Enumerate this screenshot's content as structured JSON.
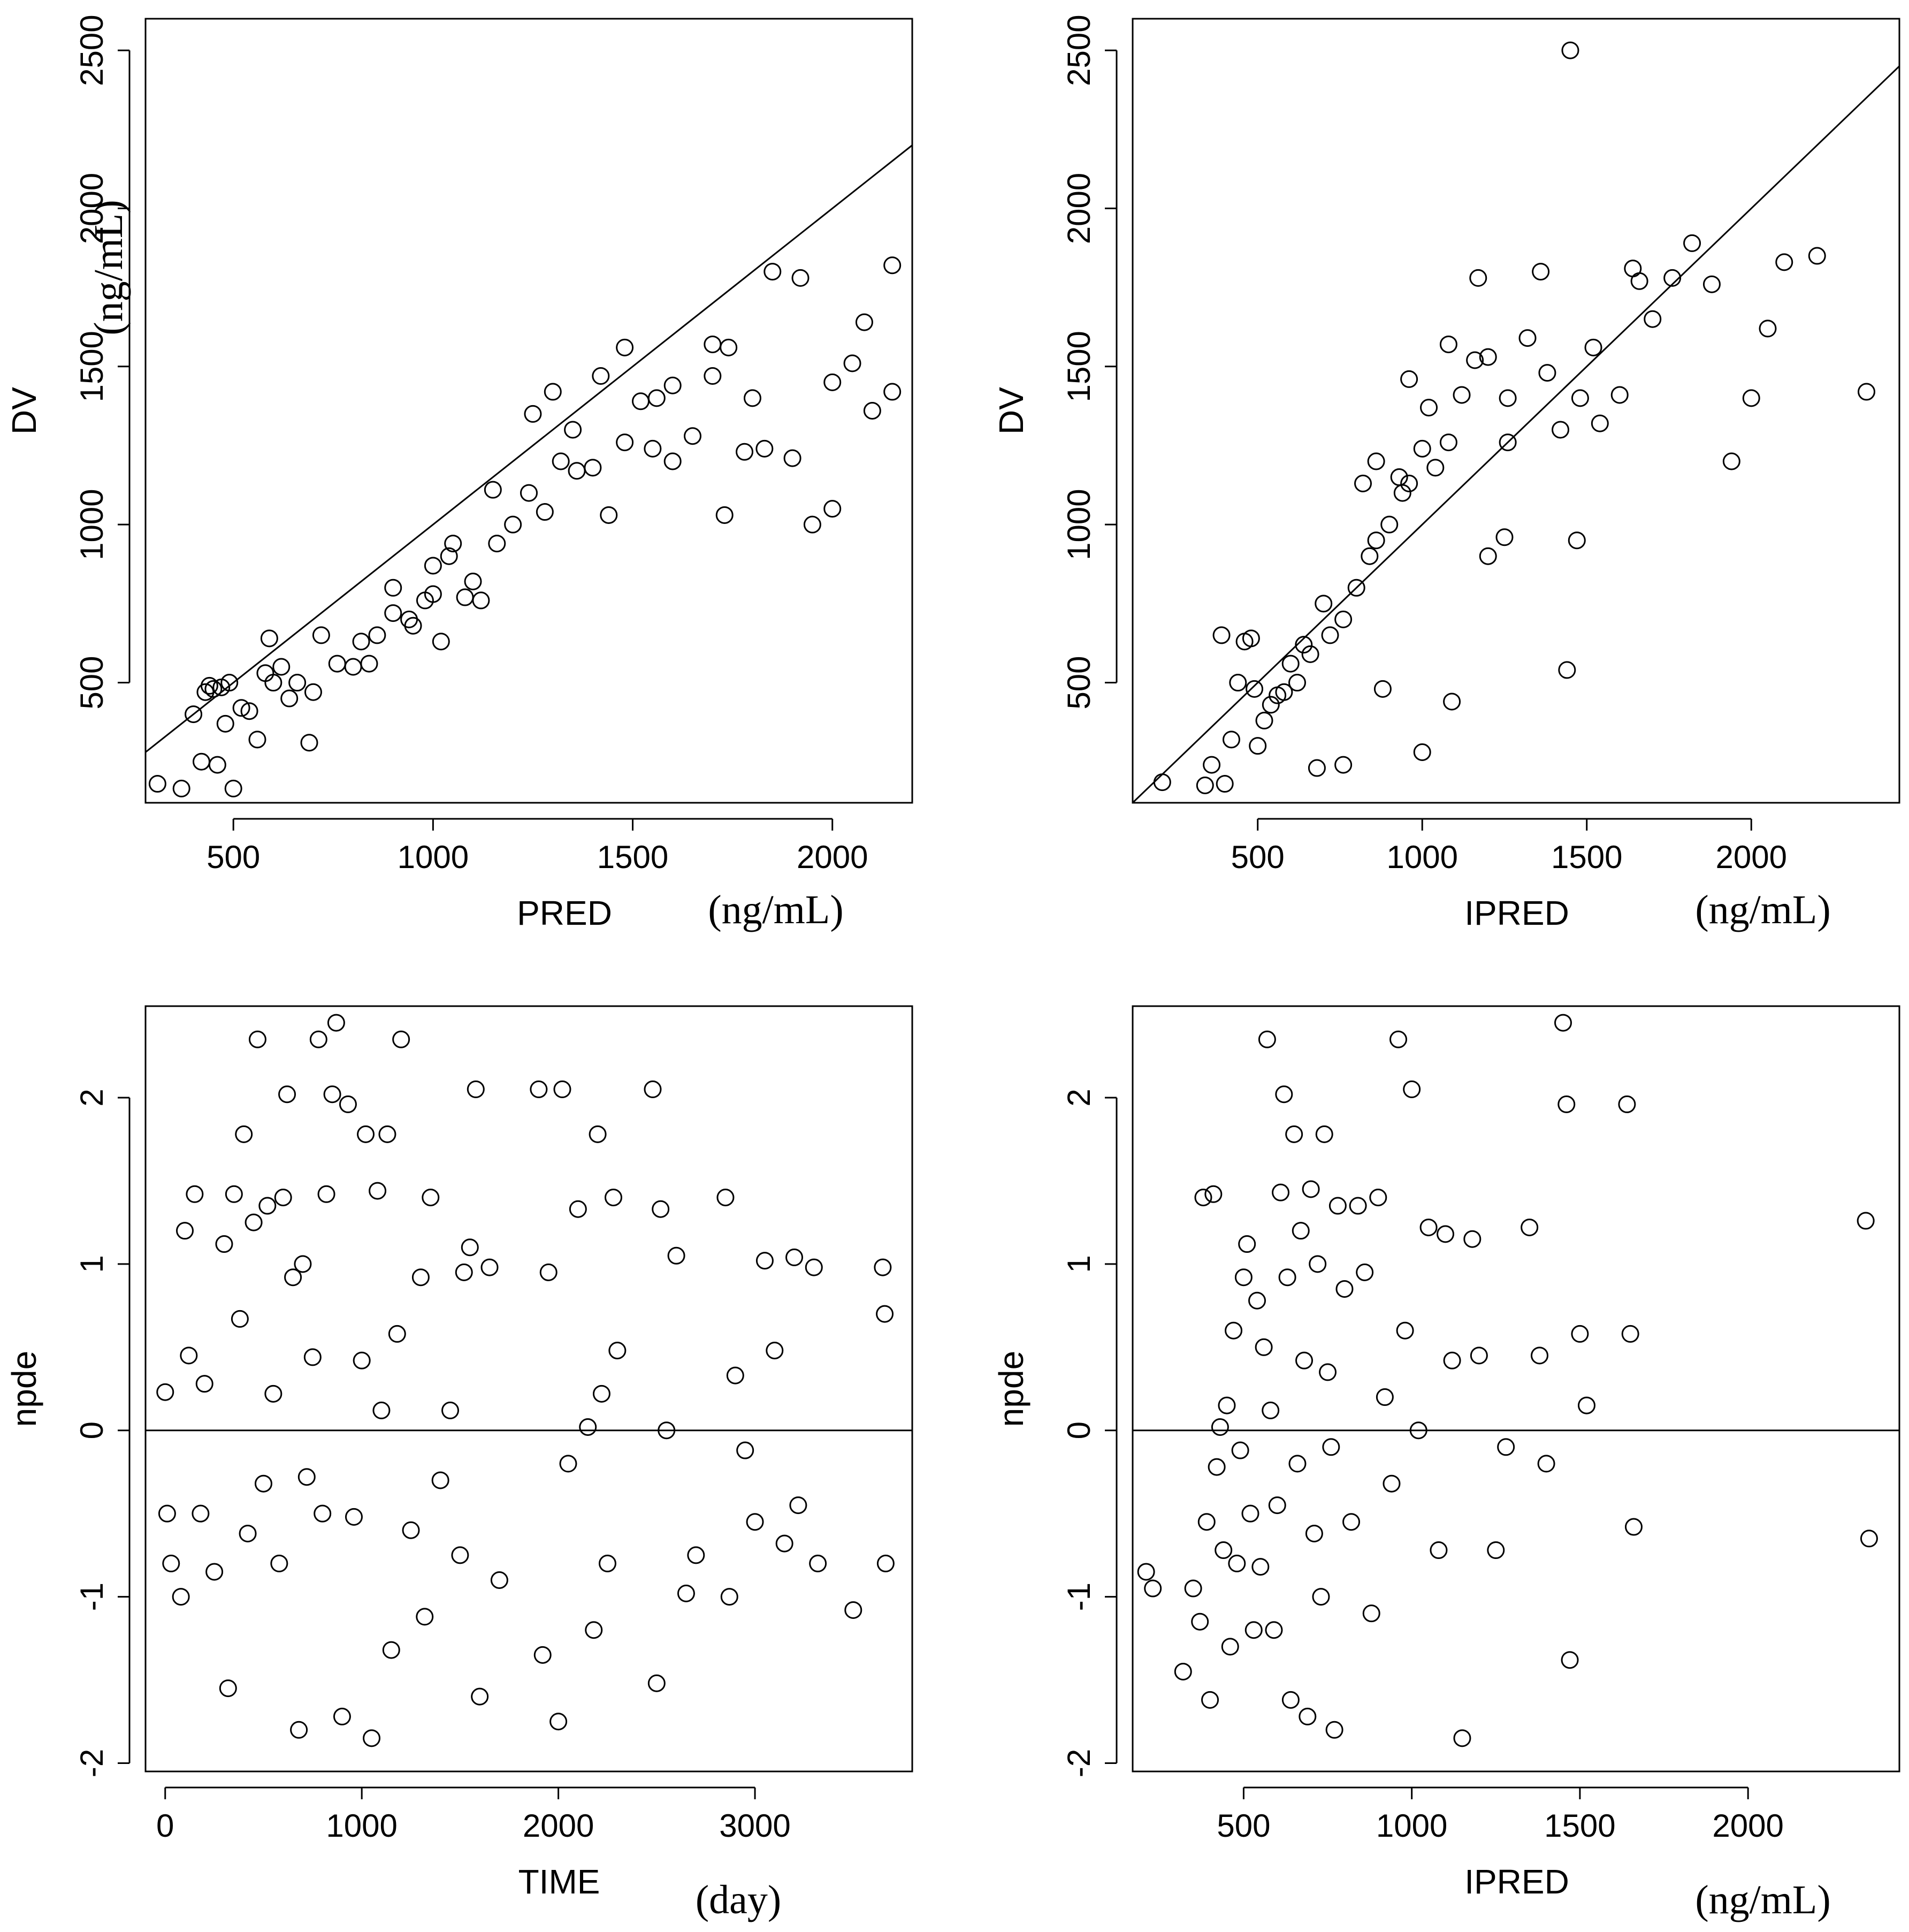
{
  "chart_data": [
    {
      "id": "top-left",
      "type": "scatter",
      "title": "",
      "xlabel": "PRED",
      "ylabel": "DV",
      "x_unit": "(ng/mL)",
      "y_unit": "(ng/mL)",
      "xlim": [
        280,
        2200
      ],
      "ylim": [
        120,
        2600
      ],
      "xticks": [
        500,
        1000,
        1500,
        2000
      ],
      "yticks": [
        500,
        1000,
        1500,
        2000,
        2500
      ],
      "reference_line": {
        "type": "identity",
        "from": [
          280,
          280
        ],
        "to": [
          2200,
          2200
        ]
      },
      "points": [
        [
          310,
          180
        ],
        [
          370,
          165
        ],
        [
          400,
          400
        ],
        [
          420,
          250
        ],
        [
          430,
          470
        ],
        [
          440,
          490
        ],
        [
          450,
          480
        ],
        [
          460,
          240
        ],
        [
          470,
          485
        ],
        [
          480,
          370
        ],
        [
          490,
          500
        ],
        [
          520,
          420
        ],
        [
          500,
          165
        ],
        [
          540,
          410
        ],
        [
          560,
          320
        ],
        [
          580,
          530
        ],
        [
          590,
          640
        ],
        [
          600,
          500
        ],
        [
          620,
          550
        ],
        [
          640,
          450
        ],
        [
          660,
          500
        ],
        [
          690,
          310
        ],
        [
          700,
          470
        ],
        [
          720,
          650
        ],
        [
          760,
          560
        ],
        [
          800,
          550
        ],
        [
          820,
          630
        ],
        [
          840,
          560
        ],
        [
          860,
          650
        ],
        [
          900,
          720
        ],
        [
          940,
          700
        ],
        [
          980,
          760
        ],
        [
          1000,
          780
        ],
        [
          1020,
          630
        ],
        [
          1040,
          900
        ],
        [
          1080,
          770
        ],
        [
          1120,
          760
        ],
        [
          1160,
          940
        ],
        [
          1200,
          1000
        ],
        [
          1240,
          1100
        ],
        [
          1280,
          1040
        ],
        [
          1320,
          1200
        ],
        [
          1360,
          1170
        ],
        [
          1400,
          1180
        ],
        [
          1440,
          1030
        ],
        [
          1480,
          1260
        ],
        [
          1520,
          1390
        ],
        [
          1560,
          1400
        ],
        [
          1600,
          1440
        ],
        [
          1650,
          1280
        ],
        [
          1700,
          1570
        ],
        [
          1740,
          1560
        ],
        [
          1780,
          1230
        ],
        [
          1800,
          1400
        ],
        [
          1850,
          1800
        ],
        [
          1900,
          1210
        ],
        [
          1950,
          1000
        ],
        [
          2000,
          1450
        ],
        [
          2050,
          1510
        ],
        [
          2100,
          1360
        ],
        [
          2150,
          1820
        ],
        [
          900,
          800
        ],
        [
          950,
          680
        ],
        [
          1000,
          870
        ],
        [
          1050,
          940
        ],
        [
          1100,
          820
        ],
        [
          1150,
          1110
        ],
        [
          1250,
          1350
        ],
        [
          1300,
          1420
        ],
        [
          1350,
          1300
        ],
        [
          1420,
          1470
        ],
        [
          1480,
          1560
        ],
        [
          1550,
          1240
        ],
        [
          1600,
          1200
        ],
        [
          1700,
          1470
        ],
        [
          1730,
          1030
        ],
        [
          1830,
          1240
        ],
        [
          1920,
          1780
        ],
        [
          2000,
          1050
        ],
        [
          2080,
          1640
        ],
        [
          2150,
          1420
        ]
      ]
    },
    {
      "id": "top-right",
      "type": "scatter",
      "title": "",
      "xlabel": "IPRED",
      "ylabel": "DV",
      "x_unit": "(ng/mL)",
      "xlim": [
        120,
        2450
      ],
      "ylim": [
        120,
        2600
      ],
      "xticks": [
        500,
        1000,
        1500,
        2000
      ],
      "yticks": [
        500,
        1000,
        1500,
        2000,
        2500
      ],
      "reference_line": {
        "type": "identity",
        "from": [
          120,
          120
        ],
        "to": [
          2450,
          2450
        ]
      },
      "points": [
        [
          210,
          185
        ],
        [
          340,
          175
        ],
        [
          360,
          240
        ],
        [
          390,
          650
        ],
        [
          400,
          180
        ],
        [
          420,
          320
        ],
        [
          440,
          500
        ],
        [
          460,
          630
        ],
        [
          480,
          640
        ],
        [
          490,
          480
        ],
        [
          500,
          300
        ],
        [
          520,
          380
        ],
        [
          540,
          430
        ],
        [
          560,
          460
        ],
        [
          580,
          470
        ],
        [
          600,
          560
        ],
        [
          620,
          500
        ],
        [
          640,
          620
        ],
        [
          660,
          590
        ],
        [
          700,
          750
        ],
        [
          720,
          650
        ],
        [
          760,
          700
        ],
        [
          800,
          800
        ],
        [
          840,
          900
        ],
        [
          860,
          950
        ],
        [
          900,
          1000
        ],
        [
          940,
          1100
        ],
        [
          960,
          1130
        ],
        [
          1000,
          1240
        ],
        [
          1040,
          1180
        ],
        [
          1080,
          1260
        ],
        [
          1120,
          1410
        ],
        [
          1160,
          1520
        ],
        [
          1200,
          1530
        ],
        [
          1260,
          1400
        ],
        [
          1320,
          1590
        ],
        [
          1380,
          1480
        ],
        [
          1420,
          1300
        ],
        [
          1480,
          1400
        ],
        [
          1540,
          1320
        ],
        [
          1600,
          1410
        ],
        [
          1660,
          1770
        ],
        [
          1700,
          1650
        ],
        [
          1760,
          1780
        ],
        [
          1820,
          1890
        ],
        [
          1880,
          1760
        ],
        [
          1940,
          1200
        ],
        [
          2000,
          1400
        ],
        [
          2050,
          1620
        ],
        [
          2100,
          1830
        ],
        [
          2200,
          1850
        ],
        [
          2350,
          1420
        ],
        [
          1450,
          2500
        ],
        [
          1640,
          1810
        ],
        [
          1520,
          1560
        ],
        [
          1470,
          950
        ],
        [
          1440,
          540
        ],
        [
          1090,
          440
        ],
        [
          1200,
          900
        ],
        [
          1260,
          1260
        ],
        [
          1250,
          960
        ],
        [
          1000,
          280
        ],
        [
          760,
          240
        ],
        [
          680,
          230
        ],
        [
          820,
          1130
        ],
        [
          860,
          1200
        ],
        [
          880,
          480
        ],
        [
          930,
          1150
        ],
        [
          960,
          1460
        ],
        [
          1020,
          1370
        ],
        [
          1080,
          1570
        ],
        [
          1170,
          1780
        ],
        [
          1360,
          1800
        ]
      ]
    },
    {
      "id": "bottom-left",
      "type": "scatter",
      "title": "",
      "xlabel": "TIME",
      "ylabel": "npde",
      "x_unit": "(day)",
      "xlim": [
        -100,
        3800
      ],
      "ylim": [
        -2.05,
        2.55
      ],
      "xticks": [
        0,
        1000,
        2000,
        3000
      ],
      "yticks": [
        -2,
        -1,
        0,
        1,
        2
      ],
      "reference_line": {
        "type": "horizontal",
        "y": 0
      },
      "points": [
        [
          0,
          0.23
        ],
        [
          10,
          -0.5
        ],
        [
          30,
          -0.8
        ],
        [
          80,
          -1.0
        ],
        [
          100,
          1.2
        ],
        [
          120,
          0.45
        ],
        [
          150,
          1.42
        ],
        [
          180,
          -0.5
        ],
        [
          200,
          0.28
        ],
        [
          250,
          -0.85
        ],
        [
          300,
          1.12
        ],
        [
          320,
          -1.55
        ],
        [
          350,
          1.42
        ],
        [
          380,
          0.67
        ],
        [
          400,
          1.78
        ],
        [
          420,
          -0.62
        ],
        [
          450,
          1.25
        ],
        [
          470,
          2.35
        ],
        [
          500,
          -0.32
        ],
        [
          520,
          1.35
        ],
        [
          550,
          0.22
        ],
        [
          580,
          -0.8
        ],
        [
          600,
          1.4
        ],
        [
          620,
          2.02
        ],
        [
          650,
          0.92
        ],
        [
          680,
          -1.8
        ],
        [
          700,
          1.0
        ],
        [
          720,
          -0.28
        ],
        [
          750,
          0.44
        ],
        [
          780,
          2.35
        ],
        [
          800,
          -0.5
        ],
        [
          820,
          1.42
        ],
        [
          850,
          2.02
        ],
        [
          870,
          2.45
        ],
        [
          900,
          -1.72
        ],
        [
          930,
          1.96
        ],
        [
          960,
          -0.52
        ],
        [
          1000,
          0.42
        ],
        [
          1020,
          1.78
        ],
        [
          1050,
          -1.85
        ],
        [
          1080,
          1.44
        ],
        [
          1100,
          0.12
        ],
        [
          1130,
          1.78
        ],
        [
          1150,
          -1.32
        ],
        [
          1180,
          0.58
        ],
        [
          1200,
          2.35
        ],
        [
          1250,
          -0.6
        ],
        [
          1300,
          0.92
        ],
        [
          1320,
          -1.12
        ],
        [
          1350,
          1.4
        ],
        [
          1400,
          -0.3
        ],
        [
          1450,
          0.12
        ],
        [
          1500,
          -0.75
        ],
        [
          1520,
          0.95
        ],
        [
          1550,
          1.1
        ],
        [
          1580,
          2.05
        ],
        [
          1600,
          -1.6
        ],
        [
          1650,
          0.98
        ],
        [
          1700,
          -0.9
        ],
        [
          1900,
          2.05
        ],
        [
          1920,
          -1.35
        ],
        [
          1950,
          0.95
        ],
        [
          2000,
          -1.75
        ],
        [
          2020,
          2.05
        ],
        [
          2050,
          -0.2
        ],
        [
          2100,
          1.33
        ],
        [
          2150,
          0.02
        ],
        [
          2180,
          -1.2
        ],
        [
          2200,
          1.78
        ],
        [
          2220,
          0.22
        ],
        [
          2250,
          -0.8
        ],
        [
          2280,
          1.4
        ],
        [
          2300,
          0.48
        ],
        [
          2480,
          2.05
        ],
        [
          2500,
          -1.52
        ],
        [
          2520,
          1.33
        ],
        [
          2550,
          0.0
        ],
        [
          2600,
          1.05
        ],
        [
          2650,
          -0.98
        ],
        [
          2700,
          -0.75
        ],
        [
          2850,
          1.4
        ],
        [
          2870,
          -1.0
        ],
        [
          2900,
          0.33
        ],
        [
          2950,
          -0.12
        ],
        [
          3000,
          -0.55
        ],
        [
          3050,
          1.02
        ],
        [
          3100,
          0.48
        ],
        [
          3150,
          -0.68
        ],
        [
          3200,
          1.04
        ],
        [
          3220,
          -0.45
        ],
        [
          3300,
          0.98
        ],
        [
          3320,
          -0.8
        ],
        [
          3500,
          -1.08
        ],
        [
          3650,
          0.98
        ],
        [
          3660,
          0.7
        ],
        [
          3665,
          -0.8
        ]
      ]
    },
    {
      "id": "bottom-right",
      "type": "scatter",
      "title": "",
      "xlabel": "IPRED",
      "ylabel": "npde",
      "x_unit": "(ng/mL)",
      "xlim": [
        170,
        2450
      ],
      "ylim": [
        -2.05,
        2.55
      ],
      "xticks": [
        500,
        1000,
        1500,
        2000
      ],
      "yticks": [
        -2,
        -1,
        0,
        1,
        2
      ],
      "reference_line": {
        "type": "horizontal",
        "y": 0
      },
      "points": [
        [
          210,
          -0.85
        ],
        [
          230,
          -0.95
        ],
        [
          320,
          -1.45
        ],
        [
          350,
          -0.95
        ],
        [
          370,
          -1.15
        ],
        [
          380,
          1.4
        ],
        [
          390,
          -0.55
        ],
        [
          400,
          -1.62
        ],
        [
          410,
          1.42
        ],
        [
          420,
          -0.22
        ],
        [
          430,
          0.02
        ],
        [
          440,
          -0.72
        ],
        [
          450,
          0.15
        ],
        [
          460,
          -1.3
        ],
        [
          470,
          0.6
        ],
        [
          480,
          -0.8
        ],
        [
          490,
          -0.12
        ],
        [
          500,
          0.92
        ],
        [
          510,
          1.12
        ],
        [
          520,
          -0.5
        ],
        [
          530,
          -1.2
        ],
        [
          540,
          0.78
        ],
        [
          550,
          -0.82
        ],
        [
          560,
          0.5
        ],
        [
          570,
          2.35
        ],
        [
          580,
          0.12
        ],
        [
          590,
          -1.2
        ],
        [
          600,
          -0.45
        ],
        [
          610,
          1.43
        ],
        [
          620,
          2.02
        ],
        [
          630,
          0.92
        ],
        [
          640,
          -1.62
        ],
        [
          650,
          1.78
        ],
        [
          660,
          -0.2
        ],
        [
          670,
          1.2
        ],
        [
          680,
          0.42
        ],
        [
          690,
          -1.72
        ],
        [
          700,
          1.45
        ],
        [
          710,
          -0.62
        ],
        [
          720,
          1.0
        ],
        [
          730,
          -1.0
        ],
        [
          740,
          1.78
        ],
        [
          750,
          0.35
        ],
        [
          760,
          -0.1
        ],
        [
          770,
          -1.8
        ],
        [
          780,
          1.35
        ],
        [
          800,
          0.85
        ],
        [
          820,
          -0.55
        ],
        [
          840,
          1.35
        ],
        [
          860,
          0.95
        ],
        [
          880,
          -1.1
        ],
        [
          900,
          1.4
        ],
        [
          920,
          0.2
        ],
        [
          940,
          -0.32
        ],
        [
          960,
          2.35
        ],
        [
          980,
          0.6
        ],
        [
          1000,
          2.05
        ],
        [
          1020,
          0.0
        ],
        [
          1050,
          1.22
        ],
        [
          1080,
          -0.72
        ],
        [
          1100,
          1.18
        ],
        [
          1120,
          0.42
        ],
        [
          1150,
          -1.85
        ],
        [
          1180,
          1.15
        ],
        [
          1200,
          0.45
        ],
        [
          1250,
          -0.72
        ],
        [
          1280,
          -0.1
        ],
        [
          1350,
          1.22
        ],
        [
          1380,
          0.45
        ],
        [
          1400,
          -0.2
        ],
        [
          1450,
          2.45
        ],
        [
          1460,
          1.96
        ],
        [
          1470,
          -1.38
        ],
        [
          1500,
          0.58
        ],
        [
          1520,
          0.15
        ],
        [
          1640,
          1.96
        ],
        [
          1650,
          0.58
        ],
        [
          1660,
          -0.58
        ],
        [
          2350,
          1.26
        ],
        [
          2360,
          -0.65
        ]
      ]
    }
  ]
}
